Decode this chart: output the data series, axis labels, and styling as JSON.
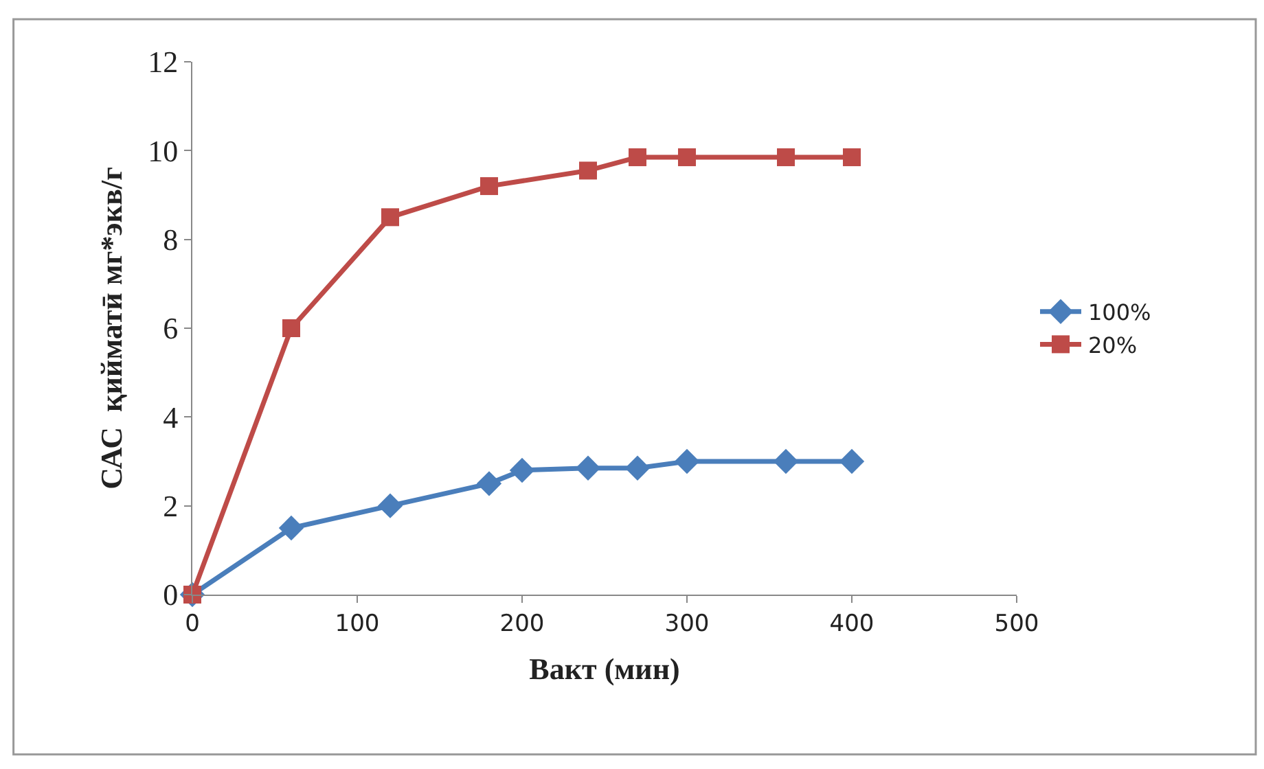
{
  "chart_data": {
    "type": "line",
    "xlabel": "Вакт (мин)",
    "ylabel": "САС  қийматӣ мг*экв/г",
    "xlim": [
      0,
      500
    ],
    "xticks": [
      0,
      100,
      200,
      300,
      400,
      500
    ],
    "ylim": [
      0,
      12
    ],
    "yticks": [
      0,
      2,
      4,
      6,
      8,
      10,
      12
    ],
    "legend": "right",
    "series": [
      {
        "name": "100%",
        "color": "#4a7ebb",
        "marker": "diamond",
        "x": [
          0,
          60,
          120,
          180,
          200,
          240,
          270,
          300,
          360,
          400
        ],
        "values": [
          0,
          1.5,
          2.0,
          2.5,
          2.8,
          2.85,
          2.85,
          3.0,
          3.0,
          3.0
        ]
      },
      {
        "name": "20%",
        "color": "#be4b48",
        "marker": "square",
        "x": [
          0,
          60,
          120,
          180,
          240,
          270,
          300,
          360,
          400
        ],
        "values": [
          0,
          6.0,
          8.5,
          9.2,
          9.55,
          9.85,
          9.85,
          9.85,
          9.85
        ]
      }
    ]
  }
}
